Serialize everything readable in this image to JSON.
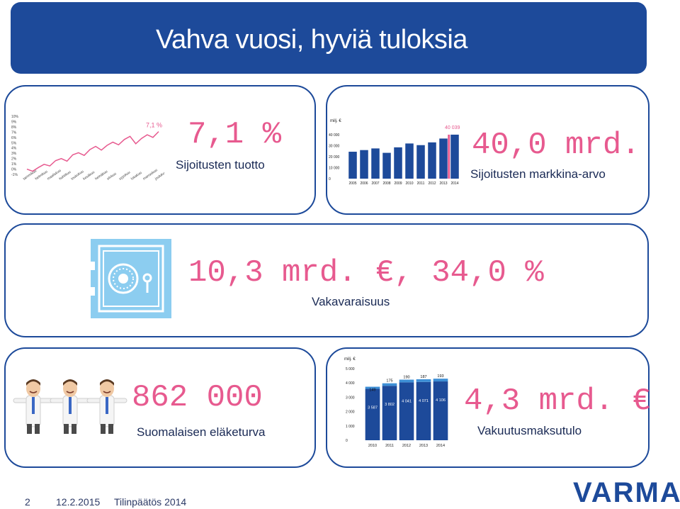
{
  "header": {
    "title": "Vahva vuosi, hyviä tuloksia"
  },
  "panels": {
    "return": {
      "value": "7,1 %",
      "label": "Sijoitusten tuotto"
    },
    "market_value": {
      "value": "40,0 mrd.",
      "label": "Sijoitusten markkina-arvo"
    },
    "solvency": {
      "value": "10,3 mrd. €, 34,0 %",
      "label": "Vakavaraisuus"
    },
    "pension": {
      "value": "862 000",
      "label": "Suomalaisen eläketurva"
    },
    "premiums": {
      "value": "4,3 mrd. €",
      "label": "Vakuutusmaksutulo"
    }
  },
  "colors": {
    "brand_blue": "#1d4a9a",
    "accent_pink": "#e75a8f",
    "safe_blue": "#8ccdf0"
  },
  "icons": [
    "safe-icon",
    "people-icon"
  ],
  "footer": {
    "page": "2",
    "date": "12.2.2015",
    "title": "Tilinpäätös 2014",
    "logo_text": "VARMA"
  },
  "chart_data": [
    {
      "type": "line",
      "annotation": "7,1 %",
      "ylim": [
        -1,
        10
      ],
      "y_ticks": [
        "10%",
        "9%",
        "8%",
        "7%",
        "6%",
        "5%",
        "4%",
        "3%",
        "2%",
        "1%",
        "0%",
        "-1%"
      ],
      "x_ticks": [
        "tammikuu",
        "helmikuu",
        "maaliskuu",
        "huhtikuu",
        "toukokuu",
        "kesäkuu",
        "heinäkuu",
        "elokuu",
        "syyskuu",
        "lokakuu",
        "marraskuu",
        "joulukuu"
      ],
      "values": [
        0.0,
        -0.4,
        0.3,
        0.9,
        0.6,
        1.6,
        2.0,
        1.5,
        2.7,
        3.1,
        2.6,
        3.7,
        4.3,
        3.6,
        4.5,
        5.1,
        4.6,
        5.6,
        6.2,
        4.8,
        5.8,
        6.5,
        6.0,
        7.1
      ]
    },
    {
      "type": "bar",
      "ylabel": "milj. €",
      "ylim": [
        0,
        40000
      ],
      "y_ticks": [
        "0",
        "10 000",
        "20 000",
        "30 000",
        "40 000"
      ],
      "categories": [
        "2005",
        "2006",
        "2007",
        "2008",
        "2009",
        "2010",
        "2011",
        "2012",
        "2013",
        "2014"
      ],
      "values": [
        24500,
        26000,
        27500,
        23500,
        28500,
        32000,
        30500,
        33000,
        36500,
        40039
      ],
      "data_labels": [
        "",
        "",
        "",
        "",
        "",
        "",
        "",
        "",
        "",
        "40 039"
      ],
      "highlight_color": "#e75a8f"
    },
    {
      "type": "bar",
      "stacked": true,
      "ylabel": "milj. €",
      "ylim": [
        0,
        5000
      ],
      "y_ticks": [
        "0",
        "1 000",
        "2 000",
        "3 000",
        "4 000",
        "5 000"
      ],
      "categories": [
        "2010",
        "2011",
        "2012",
        "2013",
        "2014"
      ],
      "series": [
        {
          "values": [
            3587,
            3802,
            4041,
            4071,
            4106
          ],
          "labels": [
            "3 587",
            "3 802",
            "4 041",
            "4 071",
            "4 106"
          ]
        },
        {
          "values": [
            149,
            175,
            190,
            187,
            193
          ],
          "labels": [
            "149",
            "175",
            "190",
            "187",
            "193"
          ]
        }
      ]
    }
  ]
}
